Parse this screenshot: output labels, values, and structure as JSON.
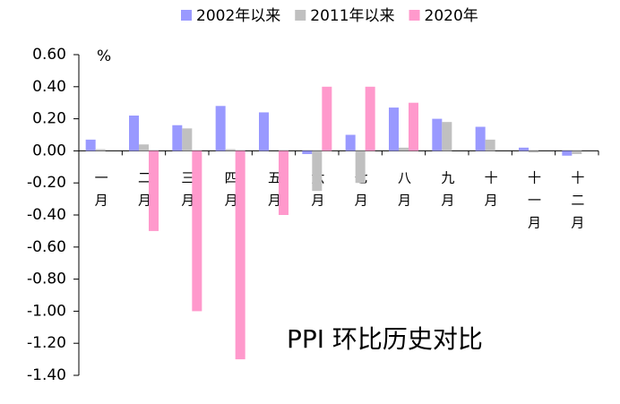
{
  "chart_data": {
    "type": "bar",
    "title": "PPI 环比历史对比",
    "y_unit": "%",
    "categories": [
      "一月",
      "二月",
      "三月",
      "四月",
      "五月",
      "六月",
      "七月",
      "八月",
      "九月",
      "十月",
      "十一月",
      "十二月"
    ],
    "series": [
      {
        "name": "2002年以来",
        "color": "#9999ff",
        "values": [
          0.07,
          0.22,
          0.16,
          0.28,
          0.24,
          -0.02,
          0.1,
          0.27,
          0.2,
          0.15,
          0.02,
          -0.03
        ]
      },
      {
        "name": "2011年以来",
        "color": "#c0c0c0",
        "values": [
          0.01,
          0.04,
          0.14,
          0.01,
          0.0,
          -0.25,
          -0.2,
          0.02,
          0.18,
          0.07,
          -0.01,
          -0.02
        ]
      },
      {
        "name": "2020年",
        "color": "#ff99cc",
        "values": [
          null,
          -0.5,
          -1.0,
          -1.3,
          -0.4,
          0.4,
          0.4,
          0.3,
          null,
          null,
          null,
          null
        ]
      }
    ],
    "ylim": [
      -1.4,
      0.6
    ],
    "yticks": [
      {
        "value": 0.6,
        "label": "0.60"
      },
      {
        "value": 0.4,
        "label": "0.40"
      },
      {
        "value": 0.2,
        "label": "0.20"
      },
      {
        "value": 0,
        "label": "0.00"
      },
      {
        "value": -0.2,
        "label": "-0.20"
      },
      {
        "value": -0.4,
        "label": "-0.40"
      },
      {
        "value": -0.6,
        "label": "-0.60"
      },
      {
        "value": -0.8,
        "label": "-0.80"
      },
      {
        "value": -1.0,
        "label": "-1.00"
      },
      {
        "value": -1.2,
        "label": "-1.20"
      },
      {
        "value": -1.4,
        "label": "-1.40"
      }
    ]
  }
}
